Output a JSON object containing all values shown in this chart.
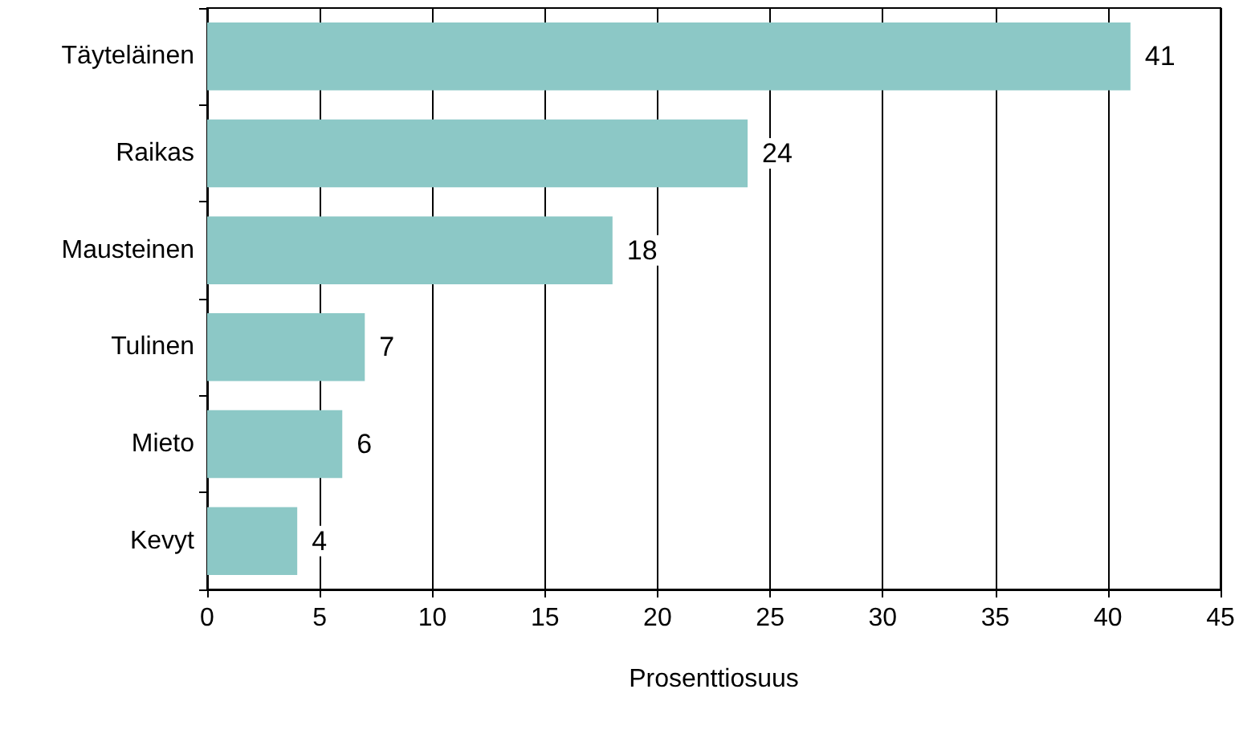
{
  "chart_data": {
    "type": "bar",
    "orientation": "horizontal",
    "xlabel": "Prosenttiosuus",
    "categories": [
      "Täyteläinen",
      "Raikas",
      "Mausteinen",
      "Tulinen",
      "Mieto",
      "Kevyt"
    ],
    "values": [
      41,
      24,
      18,
      7,
      6,
      4
    ],
    "color": "#8cc8c6",
    "xlim": [
      0,
      45
    ],
    "xticks": [
      0,
      5,
      10,
      15,
      20,
      25,
      30,
      35,
      40,
      45
    ],
    "grid": "x",
    "data_labels": true
  }
}
